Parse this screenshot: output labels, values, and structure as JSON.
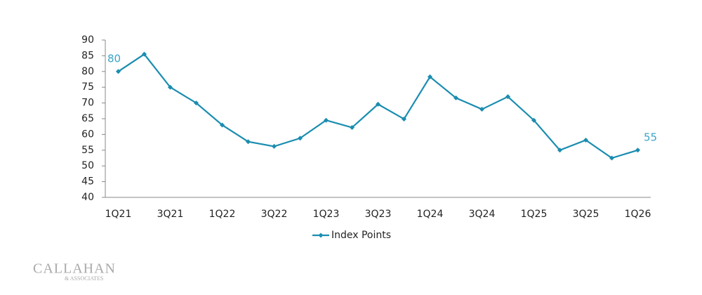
{
  "chart_data": {
    "type": "line",
    "categories": [
      "1Q21",
      null,
      "3Q21",
      null,
      "1Q22",
      null,
      "3Q22",
      null,
      "1Q23",
      null,
      "3Q23",
      null,
      "1Q24",
      null,
      "3Q24",
      null,
      "1Q25",
      null,
      "3Q25",
      null,
      "1Q26"
    ],
    "series": [
      {
        "name": "Index Points",
        "color": "#1b8db0",
        "values": [
          80,
          85.5,
          75,
          70,
          63,
          57.7,
          56.2,
          58.8,
          64.5,
          62.2,
          69.6,
          64.9,
          78.3,
          71.6,
          68,
          72,
          64.5,
          55,
          58.2,
          52.5,
          55
        ],
        "value_labels": [
          "80",
          null,
          null,
          null,
          null,
          null,
          null,
          null,
          null,
          null,
          null,
          null,
          null,
          null,
          null,
          null,
          null,
          null,
          null,
          null,
          "55"
        ]
      }
    ],
    "ylim": [
      40,
      90
    ],
    "yticks": [
      40,
      45,
      50,
      55,
      60,
      65,
      70,
      75,
      80,
      85,
      90
    ],
    "grid": false,
    "legend": "bottom"
  },
  "logo": "CALLAHAN",
  "logo_sub": "& ASSOCIATES"
}
